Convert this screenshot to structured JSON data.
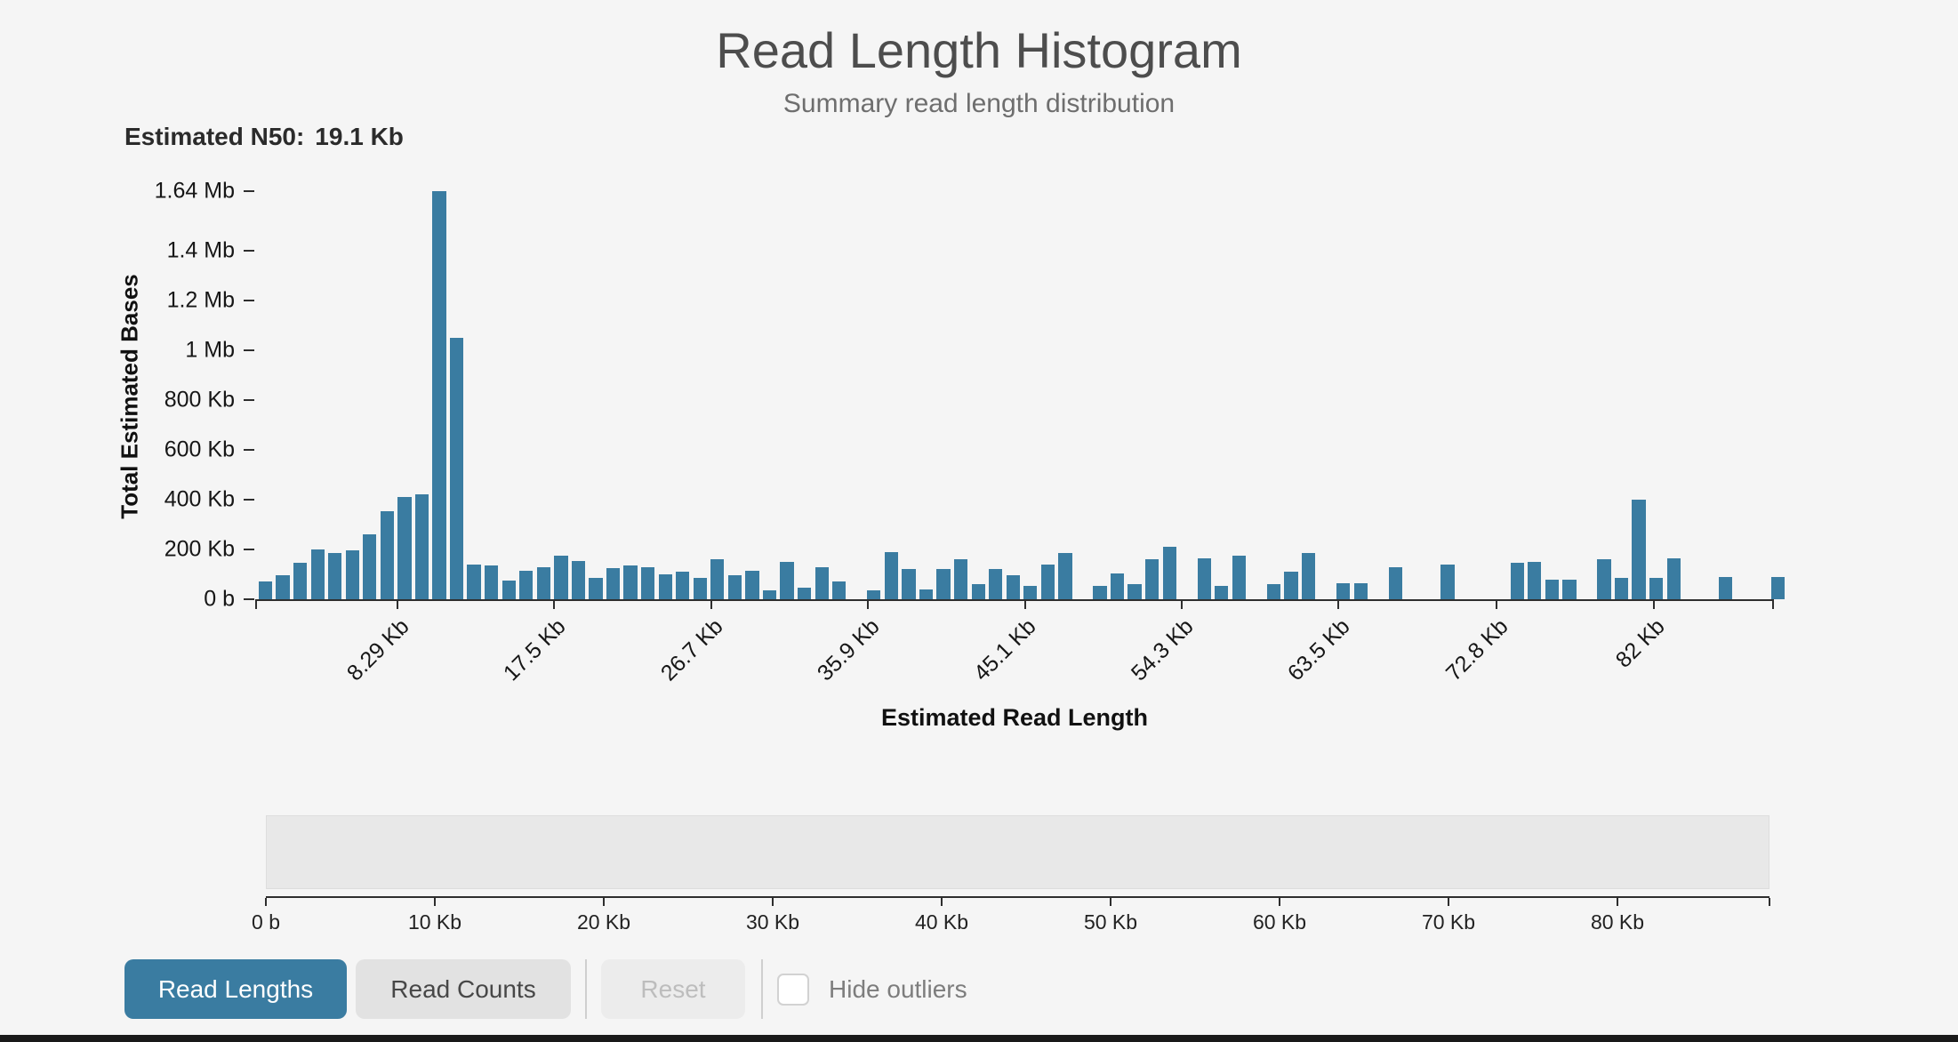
{
  "header": {
    "title": "Read Length Histogram",
    "subtitle": "Summary read length distribution",
    "n50_label": "Estimated N50:",
    "n50_value": "19.1 Kb"
  },
  "chart_data": {
    "type": "bar",
    "title": "Read Length Histogram",
    "xlabel": "Estimated Read Length",
    "ylabel": "Total Estimated Bases",
    "x_unit": "Kb",
    "x_start_kb": 0.15,
    "bin_width_kb": 1.02,
    "x_max_kb": 89,
    "y_max_kb": 1640,
    "grid": false,
    "legend": "none",
    "y_ticks": [
      {
        "value": 0,
        "label": "0 b"
      },
      {
        "value": 200,
        "label": "200 Kb"
      },
      {
        "value": 400,
        "label": "400 Kb"
      },
      {
        "value": 600,
        "label": "600 Kb"
      },
      {
        "value": 800,
        "label": "800 Kb"
      },
      {
        "value": 1000,
        "label": "1 Mb"
      },
      {
        "value": 1200,
        "label": "1.2 Mb"
      },
      {
        "value": 1400,
        "label": "1.4 Mb"
      },
      {
        "value": 1640,
        "label": "1.64 Mb"
      }
    ],
    "x_ticks": [
      {
        "value": 8.29,
        "label": "8.29 Kb"
      },
      {
        "value": 17.5,
        "label": "17.5 Kb"
      },
      {
        "value": 26.7,
        "label": "26.7 Kb"
      },
      {
        "value": 35.9,
        "label": "35.9 Kb"
      },
      {
        "value": 45.1,
        "label": "45.1 Kb"
      },
      {
        "value": 54.3,
        "label": "54.3 Kb"
      },
      {
        "value": 63.5,
        "label": "63.5 Kb"
      },
      {
        "value": 72.8,
        "label": "72.8 Kb"
      },
      {
        "value": 82,
        "label": "82 Kb"
      }
    ],
    "values_kb": [
      70,
      95,
      145,
      200,
      185,
      195,
      260,
      355,
      410,
      420,
      1640,
      1050,
      140,
      135,
      75,
      115,
      130,
      175,
      155,
      85,
      125,
      135,
      130,
      100,
      110,
      85,
      160,
      95,
      115,
      35,
      150,
      45,
      130,
      70,
      0,
      35,
      190,
      120,
      40,
      120,
      160,
      60,
      120,
      95,
      55,
      140,
      185,
      0,
      55,
      105,
      60,
      160,
      210,
      0,
      165,
      55,
      175,
      0,
      60,
      110,
      185,
      0,
      65,
      65,
      0,
      130,
      0,
      0,
      140,
      0,
      0,
      0,
      145,
      150,
      80,
      80,
      0,
      160,
      85,
      400,
      85,
      165,
      0,
      0,
      90,
      0,
      0,
      90
    ]
  },
  "navigator": {
    "x_max_kb": 89,
    "ticks": [
      {
        "value": 0,
        "label": "0 b"
      },
      {
        "value": 10,
        "label": "10 Kb"
      },
      {
        "value": 20,
        "label": "20 Kb"
      },
      {
        "value": 30,
        "label": "30 Kb"
      },
      {
        "value": 40,
        "label": "40 Kb"
      },
      {
        "value": 50,
        "label": "50 Kb"
      },
      {
        "value": 60,
        "label": "60 Kb"
      },
      {
        "value": 70,
        "label": "70 Kb"
      },
      {
        "value": 80,
        "label": "80 Kb"
      }
    ]
  },
  "toolbar": {
    "buttons": [
      {
        "label": "Read Lengths",
        "state": "active"
      },
      {
        "label": "Read Counts",
        "state": "default"
      },
      {
        "label": "Reset",
        "state": "disabled"
      }
    ],
    "hide_outliers": {
      "label": "Hide outliers",
      "checked": false
    }
  },
  "colors": {
    "accent": "#3a7ca1",
    "bar": "#3a7ca1",
    "page_background": "#f5f5f5",
    "navigator_background": "#e8e8e8",
    "footer_bar": "#191919"
  }
}
